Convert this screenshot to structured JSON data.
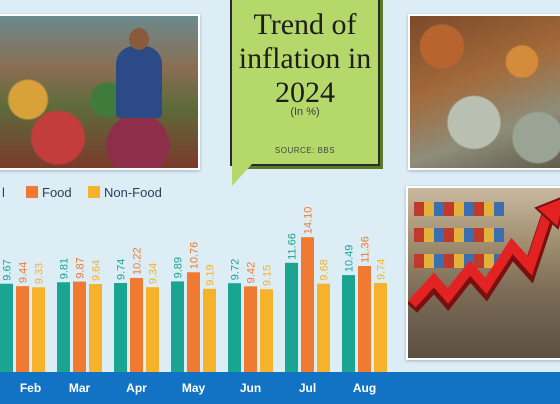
{
  "title_lines": [
    "Trend of",
    "inflation in",
    "2024"
  ],
  "subtitle": "(In %)",
  "source": "SOURCE: BBS",
  "legend": [
    {
      "label": "l",
      "color": "#1aa592"
    },
    {
      "label": "Food",
      "color": "#f07a32"
    },
    {
      "label": "Non-Food",
      "color": "#f7b22b"
    }
  ],
  "colors": {
    "background": "#dcedf6",
    "axis_band": "#1273c4",
    "title_card": "#b5d86a"
  },
  "chart_data": {
    "type": "bar",
    "title": "Trend of inflation in 2024",
    "subtitle": "(In %)",
    "categories": [
      "Feb",
      "Mar",
      "Apr",
      "May",
      "Jun",
      "Jul",
      "Aug"
    ],
    "series": [
      {
        "name": "",
        "color": "#1aa592",
        "values": [
          9.67,
          9.81,
          9.74,
          9.89,
          9.72,
          11.66,
          10.49
        ]
      },
      {
        "name": "Food",
        "color": "#f07a32",
        "values": [
          9.44,
          9.87,
          10.22,
          10.76,
          9.42,
          14.1,
          11.36
        ]
      },
      {
        "name": "Non-Food",
        "color": "#f7b22b",
        "values": [
          9.33,
          9.64,
          9.34,
          9.19,
          9.15,
          9.68,
          9.74
        ]
      }
    ],
    "value_labels": [
      [
        "9.67",
        "9.44",
        "9.33"
      ],
      [
        "9.81",
        "9.87",
        "9.64"
      ],
      [
        "9.74",
        "10.22",
        "9.34"
      ],
      [
        "9.89",
        "10.76",
        "9.19"
      ],
      [
        "9.72",
        "9.42",
        "9.15"
      ],
      [
        "11.66",
        "14.10",
        "9.68"
      ],
      [
        "10.49",
        "11.36",
        "9.74"
      ]
    ],
    "legend_position": "top-left",
    "grid": false
  }
}
